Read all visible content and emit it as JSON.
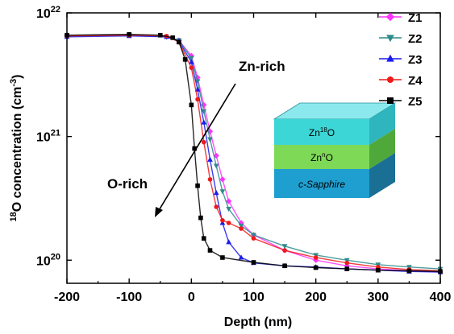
{
  "chart_data": {
    "type": "scatter",
    "xlabel": "Depth (nm)",
    "ylabel_main": "O concentration (cm",
    "ylabel_sup_pre": "18",
    "ylabel_sup_unit": "-3",
    "ylabel_tail": ")",
    "xlim": [
      -200,
      400
    ],
    "ylim": [
      65000000000000000000,
      10000000000000000000000
    ],
    "yscale": "log",
    "x_ticks": [
      -200,
      -100,
      0,
      100,
      200,
      300,
      400
    ],
    "x_tick_labels": [
      "-200",
      "-100",
      "0",
      "100",
      "200",
      "300",
      "400"
    ],
    "y_ticks": [
      {
        "value": 100000000000000000000,
        "base": "10",
        "exp": "20"
      },
      {
        "value": 1000000000000000000000,
        "base": "10",
        "exp": "21"
      },
      {
        "value": 10000000000000000000000,
        "base": "10",
        "exp": "22"
      }
    ],
    "legend_position": "top-right",
    "series": [
      {
        "name": "Z1",
        "color": "#ff33ff",
        "marker": "diamond",
        "x": [
          -200,
          -100,
          -40,
          -20,
          0,
          10,
          20,
          30,
          40,
          50,
          60,
          80,
          100,
          150,
          200,
          250,
          300,
          350,
          400
        ],
        "y": [
          6.5e+21,
          6.6e+21,
          6.4e+21,
          6e+21,
          4.5e+21,
          3e+21,
          1.8e+21,
          1.1e+21,
          7e+20,
          4.5e+20,
          3e+20,
          2e+20,
          1.6e+20,
          1.2e+20,
          1e+20,
          9e+19,
          8.5e+19,
          8.2e+19,
          8e+19
        ]
      },
      {
        "name": "Z2",
        "color": "#2e8b8b",
        "marker": "triangle-down",
        "x": [
          -200,
          -100,
          -40,
          -20,
          0,
          10,
          20,
          30,
          40,
          50,
          60,
          80,
          100,
          150,
          200,
          250,
          300,
          350,
          400
        ],
        "y": [
          6.5e+21,
          6.6e+21,
          6.4e+21,
          6e+21,
          4.3e+21,
          2.8e+21,
          1.6e+21,
          9.5e+20,
          5.8e+20,
          3.6e+20,
          2.6e+20,
          1.9e+20,
          1.6e+20,
          1.3e+20,
          1.1e+20,
          1e+20,
          9.2e+19,
          8.8e+19,
          8.5e+19
        ]
      },
      {
        "name": "Z3",
        "color": "#1a1aee",
        "marker": "triangle-up",
        "x": [
          -200,
          -100,
          -40,
          -20,
          0,
          10,
          20,
          30,
          40,
          50,
          60,
          80,
          100,
          150,
          200,
          250,
          300,
          350,
          400
        ],
        "y": [
          6.4e+21,
          6.5e+21,
          6.4e+21,
          5.9e+21,
          4e+21,
          2.4e+21,
          1.3e+21,
          6.5e+20,
          3.5e+20,
          2e+20,
          1.4e+20,
          1.05e+20,
          9.5e+19,
          9e+19,
          8.8e+19,
          8.5e+19,
          8.3e+19,
          8.1e+19,
          8e+19
        ]
      },
      {
        "name": "Z4",
        "color": "#ee1a1a",
        "marker": "circle",
        "x": [
          -200,
          -100,
          -40,
          -20,
          0,
          10,
          20,
          30,
          40,
          50,
          60,
          80,
          100,
          150,
          200,
          250,
          300,
          350,
          400
        ],
        "y": [
          6.5e+21,
          6.6e+21,
          6.5e+21,
          5.8e+21,
          3.6e+21,
          2e+21,
          9e+20,
          4.5e+20,
          2.7e+20,
          2.1e+20,
          2e+20,
          1.8e+20,
          1.5e+20,
          1.2e+20,
          1.05e+20,
          9.5e+19,
          8.8e+19,
          8.4e+19,
          8.2e+19
        ]
      },
      {
        "name": "Z5",
        "color": "#000000",
        "marker": "square",
        "x": [
          -200,
          -100,
          -50,
          -30,
          -20,
          -10,
          0,
          5,
          10,
          15,
          20,
          30,
          50,
          100,
          150,
          200,
          250,
          300,
          350,
          400
        ],
        "y": [
          6.6e+21,
          6.7e+21,
          6.6e+21,
          6.3e+21,
          5.8e+21,
          4.2e+21,
          1.8e+21,
          8e+20,
          4e+20,
          2.2e+20,
          1.5e+20,
          1.2e+20,
          1.05e+20,
          9.6e+19,
          9e+19,
          8.7e+19,
          8.5e+19,
          8.3e+19,
          8.2e+19,
          8.1e+19
        ]
      }
    ],
    "annotations": {
      "zn_rich": "Zn-rich",
      "o_rich": "O-rich"
    },
    "inset": {
      "layers": [
        {
          "base": "Zn",
          "sup": "18",
          "tail": "O",
          "color": "#3dd6d6"
        },
        {
          "base": "Zn",
          "sup": "n",
          "tail": "O",
          "color": "#7ed957"
        },
        {
          "base": "c-Sapphire",
          "sup": "",
          "tail": "",
          "color": "#1f9fcf"
        }
      ]
    }
  }
}
